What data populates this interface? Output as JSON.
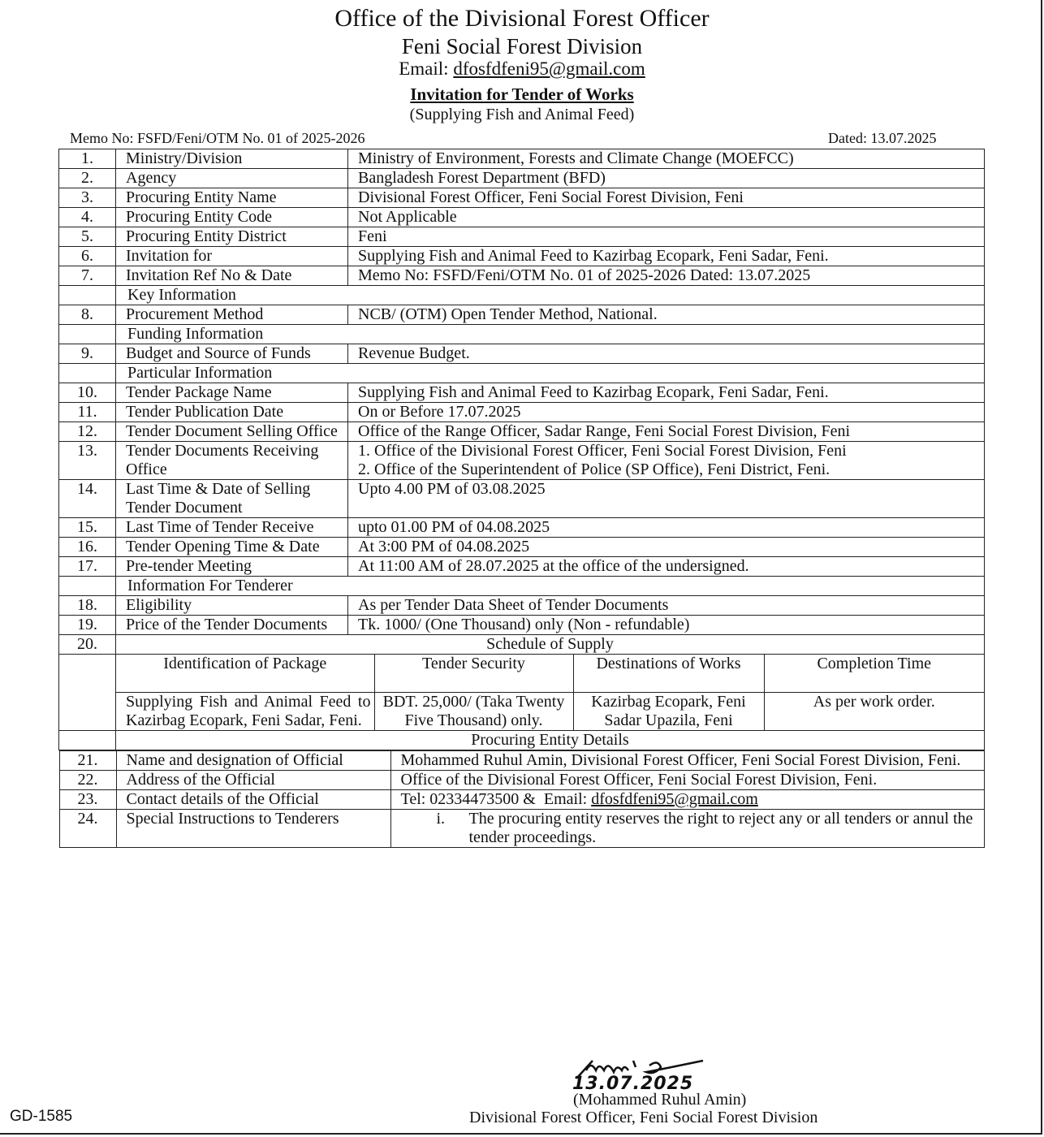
{
  "header": {
    "office": "Office of the Divisional Forest Officer",
    "division": "Feni Social Forest Division",
    "email_label": "Email: ",
    "email": "dfosfdfeni95@gmail.com",
    "title": "Invitation for Tender of Works",
    "subtitle": "(Supplying Fish and Animal Feed)",
    "memo": "Memo No: FSFD/Feni/OTM No. 01 of 2025-2026",
    "dated": "Dated: 13.07.2025"
  },
  "rows": [
    {
      "no": "1.",
      "label": "Ministry/Division",
      "value": "Ministry of Environment, Forests and Climate Change (MOEFCC)"
    },
    {
      "no": "2.",
      "label": "Agency",
      "value": "Bangladesh Forest Department (BFD)"
    },
    {
      "no": "3.",
      "label": "Procuring Entity Name",
      "value": "Divisional Forest Officer, Feni Social Forest Division, Feni"
    },
    {
      "no": "4.",
      "label": "Procuring Entity Code",
      "value": "Not Applicable"
    },
    {
      "no": "5.",
      "label": "Procuring Entity District",
      "value": "Feni"
    },
    {
      "no": "6.",
      "label": "Invitation for",
      "value": "Supplying Fish and Animal Feed to Kazirbag Ecopark, Feni Sadar, Feni."
    },
    {
      "no": "7.",
      "label": "Invitation Ref No & Date",
      "value": "Memo No: FSFD/Feni/OTM No. 01 of 2025-2026 Dated: 13.07.2025"
    },
    {
      "section": "Key Information"
    },
    {
      "no": "8.",
      "label": "Procurement Method",
      "value": "NCB/ (OTM) Open Tender Method, National."
    },
    {
      "section": "Funding Information"
    },
    {
      "no": "9.",
      "label": "Budget and Source of Funds",
      "value": "Revenue Budget.",
      "justify": true
    },
    {
      "section": "Particular Information"
    },
    {
      "no": "10.",
      "label": "Tender Package Name",
      "value": "Supplying Fish and Animal Feed to Kazirbag Ecopark, Feni Sadar, Feni."
    },
    {
      "no": "11.",
      "label": "Tender Publication Date",
      "value": "On or Before 17.07.2025"
    },
    {
      "no": "12.",
      "label": "Tender Document Selling Office",
      "value": "Office of the Range Officer, Sadar Range, Feni Social Forest Division, Feni"
    },
    {
      "no": "13.",
      "label": "Tender Documents Receiving Office",
      "value": "1. Office of the Divisional Forest Officer, Feni Social Forest Division, Feni\n2. Office of the Superintendent of Police (SP Office), Feni District, Feni."
    },
    {
      "no": "14.",
      "label": "Last Time & Date of Selling Tender Document",
      "value": "Upto 4.00 PM of 03.08.2025"
    },
    {
      "no": "15.",
      "label": "Last Time of Tender Receive",
      "value": "upto 01.00 PM of 04.08.2025"
    },
    {
      "no": "16.",
      "label": "Tender Opening Time & Date",
      "value": "At  3:00 PM of 04.08.2025"
    },
    {
      "no": "17.",
      "label": "Pre-tender Meeting",
      "value": "At 11:00 AM of 28.07.2025 at the office of the undersigned."
    },
    {
      "section": "Information For Tenderer"
    },
    {
      "no": "18.",
      "label": "Eligibility",
      "value": "As per Tender Data Sheet of Tender Documents"
    },
    {
      "no": "19.",
      "label": "Price of the Tender Documents",
      "value": "Tk. 1000/ (One Thousand) only (Non - refundable)"
    }
  ],
  "schedule": {
    "no": "20.",
    "title": "Schedule of Supply",
    "headers": [
      "Identification of Package",
      "Tender Security",
      "Destinations of Works",
      "Completion Time"
    ],
    "row": [
      "Supplying Fish and Animal Feed to Kazirbag Ecopark, Feni Sadar, Feni.",
      "BDT. 25,000/ (Taka Twenty Five Thousand) only.",
      "Kazirbag Ecopark, Feni Sadar Upazila, Feni",
      "As per work order."
    ]
  },
  "procuring": {
    "title": "Procuring Entity Details",
    "rows": [
      {
        "no": "21.",
        "label": "Name and designation of Official",
        "value": "Mohammed Ruhul Amin, Divisional Forest Officer, Feni Social Forest Division, Feni."
      },
      {
        "no": "22.",
        "label": "Address of the Official",
        "value": "Office of the Divisional Forest Officer, Feni Social Forest Division, Feni."
      },
      {
        "no": "23.",
        "label": "Contact details of the Official",
        "value": "Tel: 02334473500 &  Email: ",
        "email": "dfosfdfeni95@gmail.com"
      },
      {
        "no": "24.",
        "label": "Special Instructions to Tenderers",
        "roman": "i.",
        "value": "The procuring entity reserves the right to reject any or all tenders or annul the tender proceedings."
      }
    ]
  },
  "signature": {
    "date": "13.07.2025",
    "name": "(Mohammed Ruhul Amin)",
    "designation": "Divisional Forest Officer, Feni Social Forest Division"
  },
  "footer_code": "GD-1585"
}
